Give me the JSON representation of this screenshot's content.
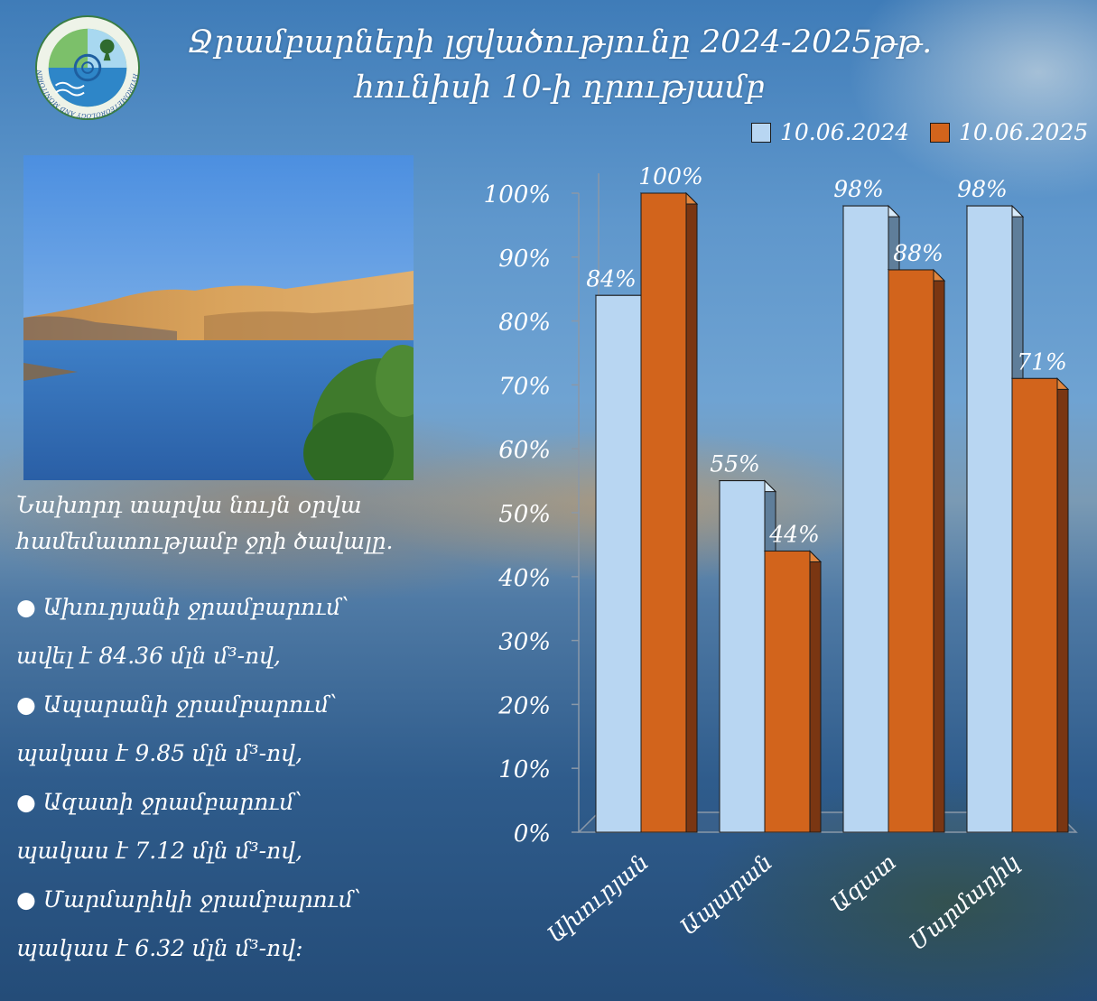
{
  "header": {
    "title_line1": "Ջրամբարների լցվածությունը 2024-2025թթ.",
    "title_line2": "հունիսի 10-ի դրությամբ",
    "logo_text": "HYDROMETEOROLOGY AND MONITORING CENTER"
  },
  "text": {
    "intro_line1": "Նախորդ տարվա նույն օրվա",
    "intro_line2": "համեմատությամբ ջրի ծավալը.",
    "bullets": [
      {
        "line1": "●  Ախուրյանի ջրամբարում՝",
        "line2": "ավել է 84.36 մլն մ³-ով,"
      },
      {
        "line1": "● Ապարանի ջրամբարում՝",
        "line2": "պակաս է 9.85 մլն մ³-ով,"
      },
      {
        "line1": "●  Ազատի ջրամբարում՝",
        "line2": "պակաս է  7.12 մլն մ³-ով,"
      },
      {
        "line1": "● Մարմարիկի ջրամբարում՝",
        "line2": "պակաս է 6.32 մլն մ³-ով:"
      }
    ]
  },
  "colors": {
    "series_2024": "#b8d6f2",
    "series_2025": "#d2641c"
  },
  "chart_data": {
    "type": "bar",
    "categories": [
      "Ախուրյան",
      "Ապարան",
      "Ազատ",
      "Մարմարիկ"
    ],
    "series": [
      {
        "name": "10.06.2024",
        "values": [
          84,
          55,
          98,
          98
        ],
        "labels": [
          "84%",
          "55%",
          "98%",
          "98%"
        ]
      },
      {
        "name": "10.06.2025",
        "values": [
          100,
          44,
          88,
          71
        ],
        "labels": [
          "100%",
          "44%",
          "88%",
          "71%"
        ]
      }
    ],
    "yticks": [
      "0%",
      "10%",
      "20%",
      "30%",
      "40%",
      "50%",
      "60%",
      "70%",
      "80%",
      "90%",
      "100%"
    ],
    "ylim": [
      0,
      100
    ],
    "legend_position": "top-right",
    "grid": false
  }
}
